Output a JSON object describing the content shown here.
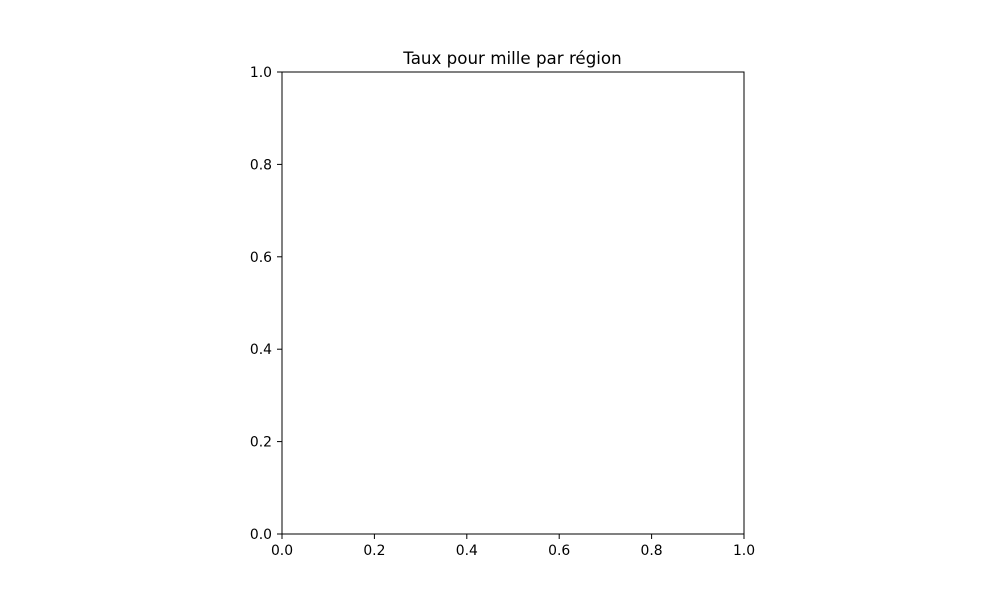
{
  "chart_data": {
    "type": "scatter",
    "title": "Taux pour mille par région",
    "xlabel": "",
    "ylabel": "",
    "xlim": [
      0.0,
      1.0
    ],
    "ylim": [
      0.0,
      1.0
    ],
    "xticks": [
      "0.0",
      "0.2",
      "0.4",
      "0.6",
      "0.8",
      "1.0"
    ],
    "yticks": [
      "0.0",
      "0.2",
      "0.4",
      "0.6",
      "0.8",
      "1.0"
    ],
    "series": [],
    "grid": false,
    "legend": "none"
  },
  "colors": {
    "background": "#ffffff",
    "axes": "#000000"
  }
}
